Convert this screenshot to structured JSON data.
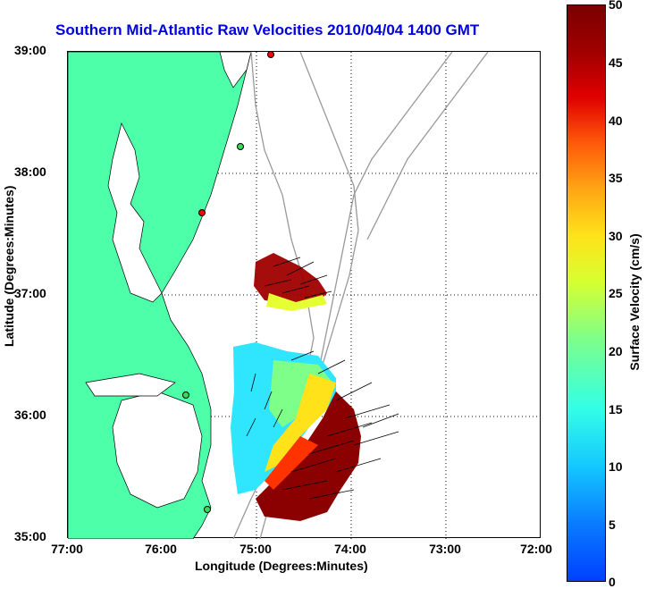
{
  "title": "Southern Mid-Atlantic Raw Velocities 2010/04/04 1400 GMT",
  "axes": {
    "y_label": "Latitude (Degrees:Minutes)",
    "x_label": "Longitude (Degrees:Minutes)",
    "y_ticks": [
      "39:00",
      "38:00",
      "37:00",
      "36:00",
      "35:00"
    ],
    "x_ticks": [
      "77:00",
      "76:00",
      "75:00",
      "74:00",
      "73:00",
      "72:00"
    ]
  },
  "colorbar": {
    "label": "Surface Velocity (cm/s)",
    "ticks": [
      "50",
      "45",
      "40",
      "35",
      "30",
      "25",
      "20",
      "15",
      "10",
      "5",
      "0"
    ],
    "range": [
      0,
      50
    ]
  },
  "colors": {
    "land": "#4dffa8",
    "title": "#0000e0",
    "high": "#7a0000",
    "low": "#0040ff"
  },
  "stations": [
    "red-station",
    "green-station",
    "red-station",
    "green-station",
    "green-station"
  ]
}
